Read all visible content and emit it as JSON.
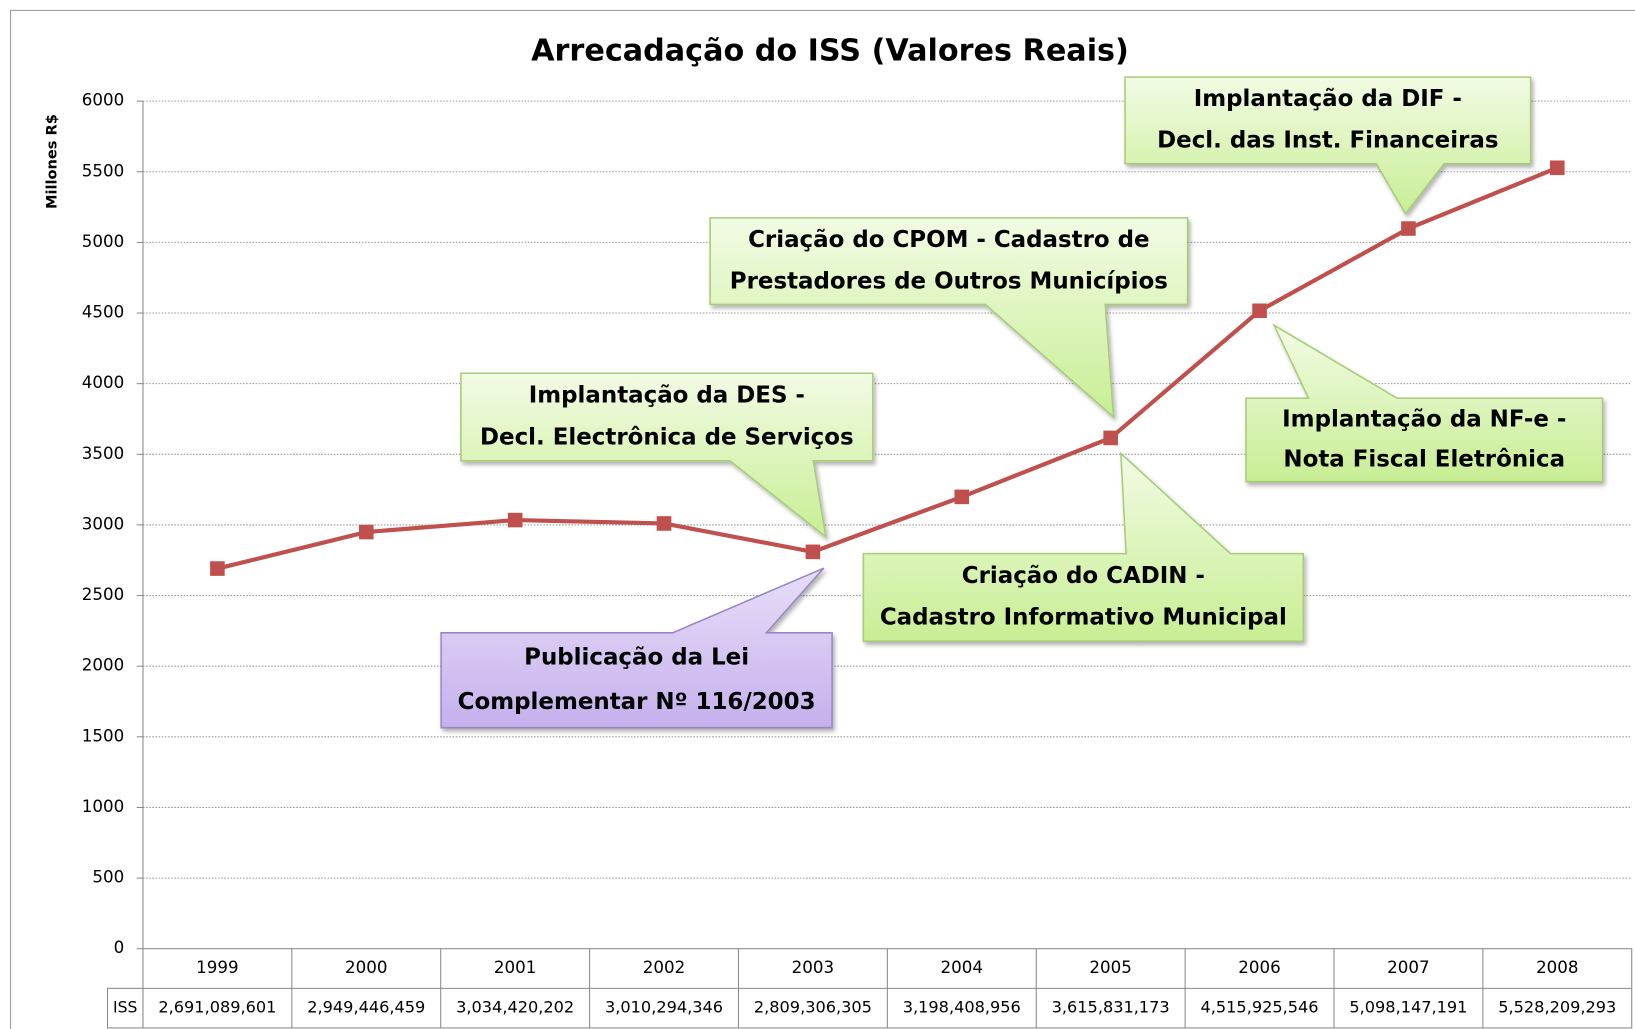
{
  "chart_data": {
    "type": "line",
    "title": "Arrecadação do ISS (Valores Reais)",
    "y_label": "Millones R$",
    "categories": [
      "1999",
      "2000",
      "2001",
      "2002",
      "2003",
      "2004",
      "2005",
      "2006",
      "2007",
      "2008"
    ],
    "series": [
      {
        "name": "ISS",
        "color": "#c0504d",
        "values": [
          2691.089601,
          2949.446459,
          3034.420202,
          3010.294346,
          2809.306305,
          3198.408956,
          3615.831173,
          4515.925546,
          5098.147191,
          5528.209293
        ],
        "value_labels": [
          "2,691,089,601",
          "2,949,446,459",
          "3,034,420,202",
          "3,010,294,346",
          "2,809,306,305",
          "3,198,408,956",
          "3,615,831,173",
          "4,515,925,546",
          "5,098,147,191",
          "5,528,209,293"
        ]
      }
    ],
    "ylim": [
      0,
      6000
    ],
    "yticks": [
      0,
      500,
      1000,
      1500,
      2000,
      2500,
      3000,
      3500,
      4000,
      4500,
      5000,
      5500,
      6000
    ],
    "grid": true,
    "annotations": [
      {
        "lines": [
          "Implantação da DES -",
          "Decl. Electrônica de Serviços"
        ],
        "color": "green"
      },
      {
        "lines": [
          "Publicação da Lei",
          "Complementar Nº 116/2003"
        ],
        "color": "purple"
      },
      {
        "lines": [
          "Criação do CPOM - Cadastro de",
          "Prestadores de Outros Municípios"
        ],
        "color": "green"
      },
      {
        "lines": [
          "Criação do CADIN -",
          "Cadastro Informativo Municipal"
        ],
        "color": "green"
      },
      {
        "lines": [
          "Implantação da DIF -",
          "Decl. das Inst. Financeiras"
        ],
        "color": "green"
      },
      {
        "lines": [
          "Implantação da NF-e -",
          "Nota Fiscal Eletrônica"
        ],
        "color": "green"
      }
    ]
  }
}
